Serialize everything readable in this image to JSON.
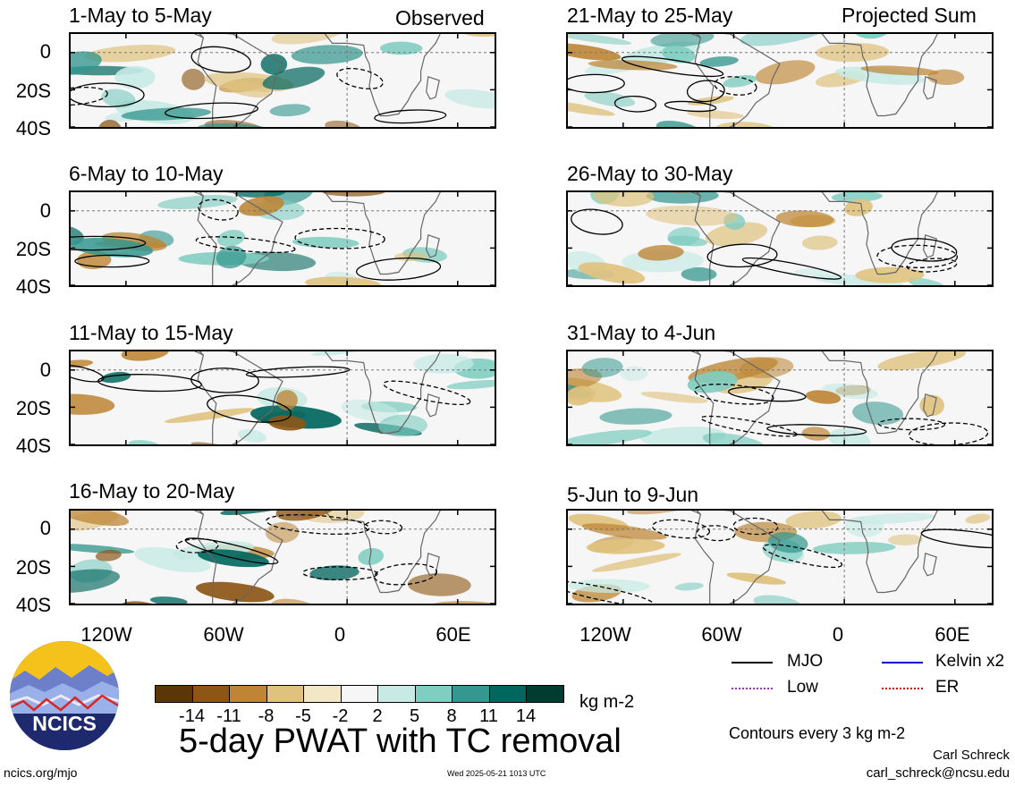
{
  "panels": [
    {
      "title": "1-May to 5-May",
      "tag": "Observed"
    },
    {
      "title": "6-May to 10-May"
    },
    {
      "title": "11-May to 15-May"
    },
    {
      "title": "16-May to 20-May"
    },
    {
      "title": "21-May to 25-May",
      "tag": "Projected Sum"
    },
    {
      "title": "26-May to 30-May"
    },
    {
      "title": "31-May to 4-Jun"
    },
    {
      "title": "5-Jun to 9-Jun"
    }
  ],
  "lat_labels": [
    "0",
    "20S",
    "40S"
  ],
  "lon_labels": [
    "120W",
    "60W",
    "0",
    "60E"
  ],
  "colorbar": {
    "ticks": [
      "-14",
      "-11",
      "-8",
      "-5",
      "-2",
      "2",
      "5",
      "8",
      "11",
      "14"
    ],
    "colors": [
      "#5a3608",
      "#8c5616",
      "#bd8535",
      "#dfc27e",
      "#f3e7c6",
      "#f6f6f6",
      "#c7eae5",
      "#80cdc1",
      "#35978f",
      "#01665e",
      "#003c30"
    ],
    "units": "kg m-2"
  },
  "title": "5-day PWAT with TC removal",
  "legend": [
    {
      "label": "MJO",
      "color": "#000000"
    },
    {
      "label": "Kelvin x2",
      "color": "#0000cc"
    },
    {
      "label": "Low",
      "color": "#9933cc"
    },
    {
      "label": "ER",
      "color": "#dd0000"
    }
  ],
  "contour_note": "Contours every 3 kg m-2",
  "author": "Carl Schreck",
  "email": "carl_schreck@ncsu.edu",
  "website": "ncics.org/mjo",
  "timestamp": "Wed 2025-05-21 1013 UTC",
  "logo_text": "NCICS"
}
